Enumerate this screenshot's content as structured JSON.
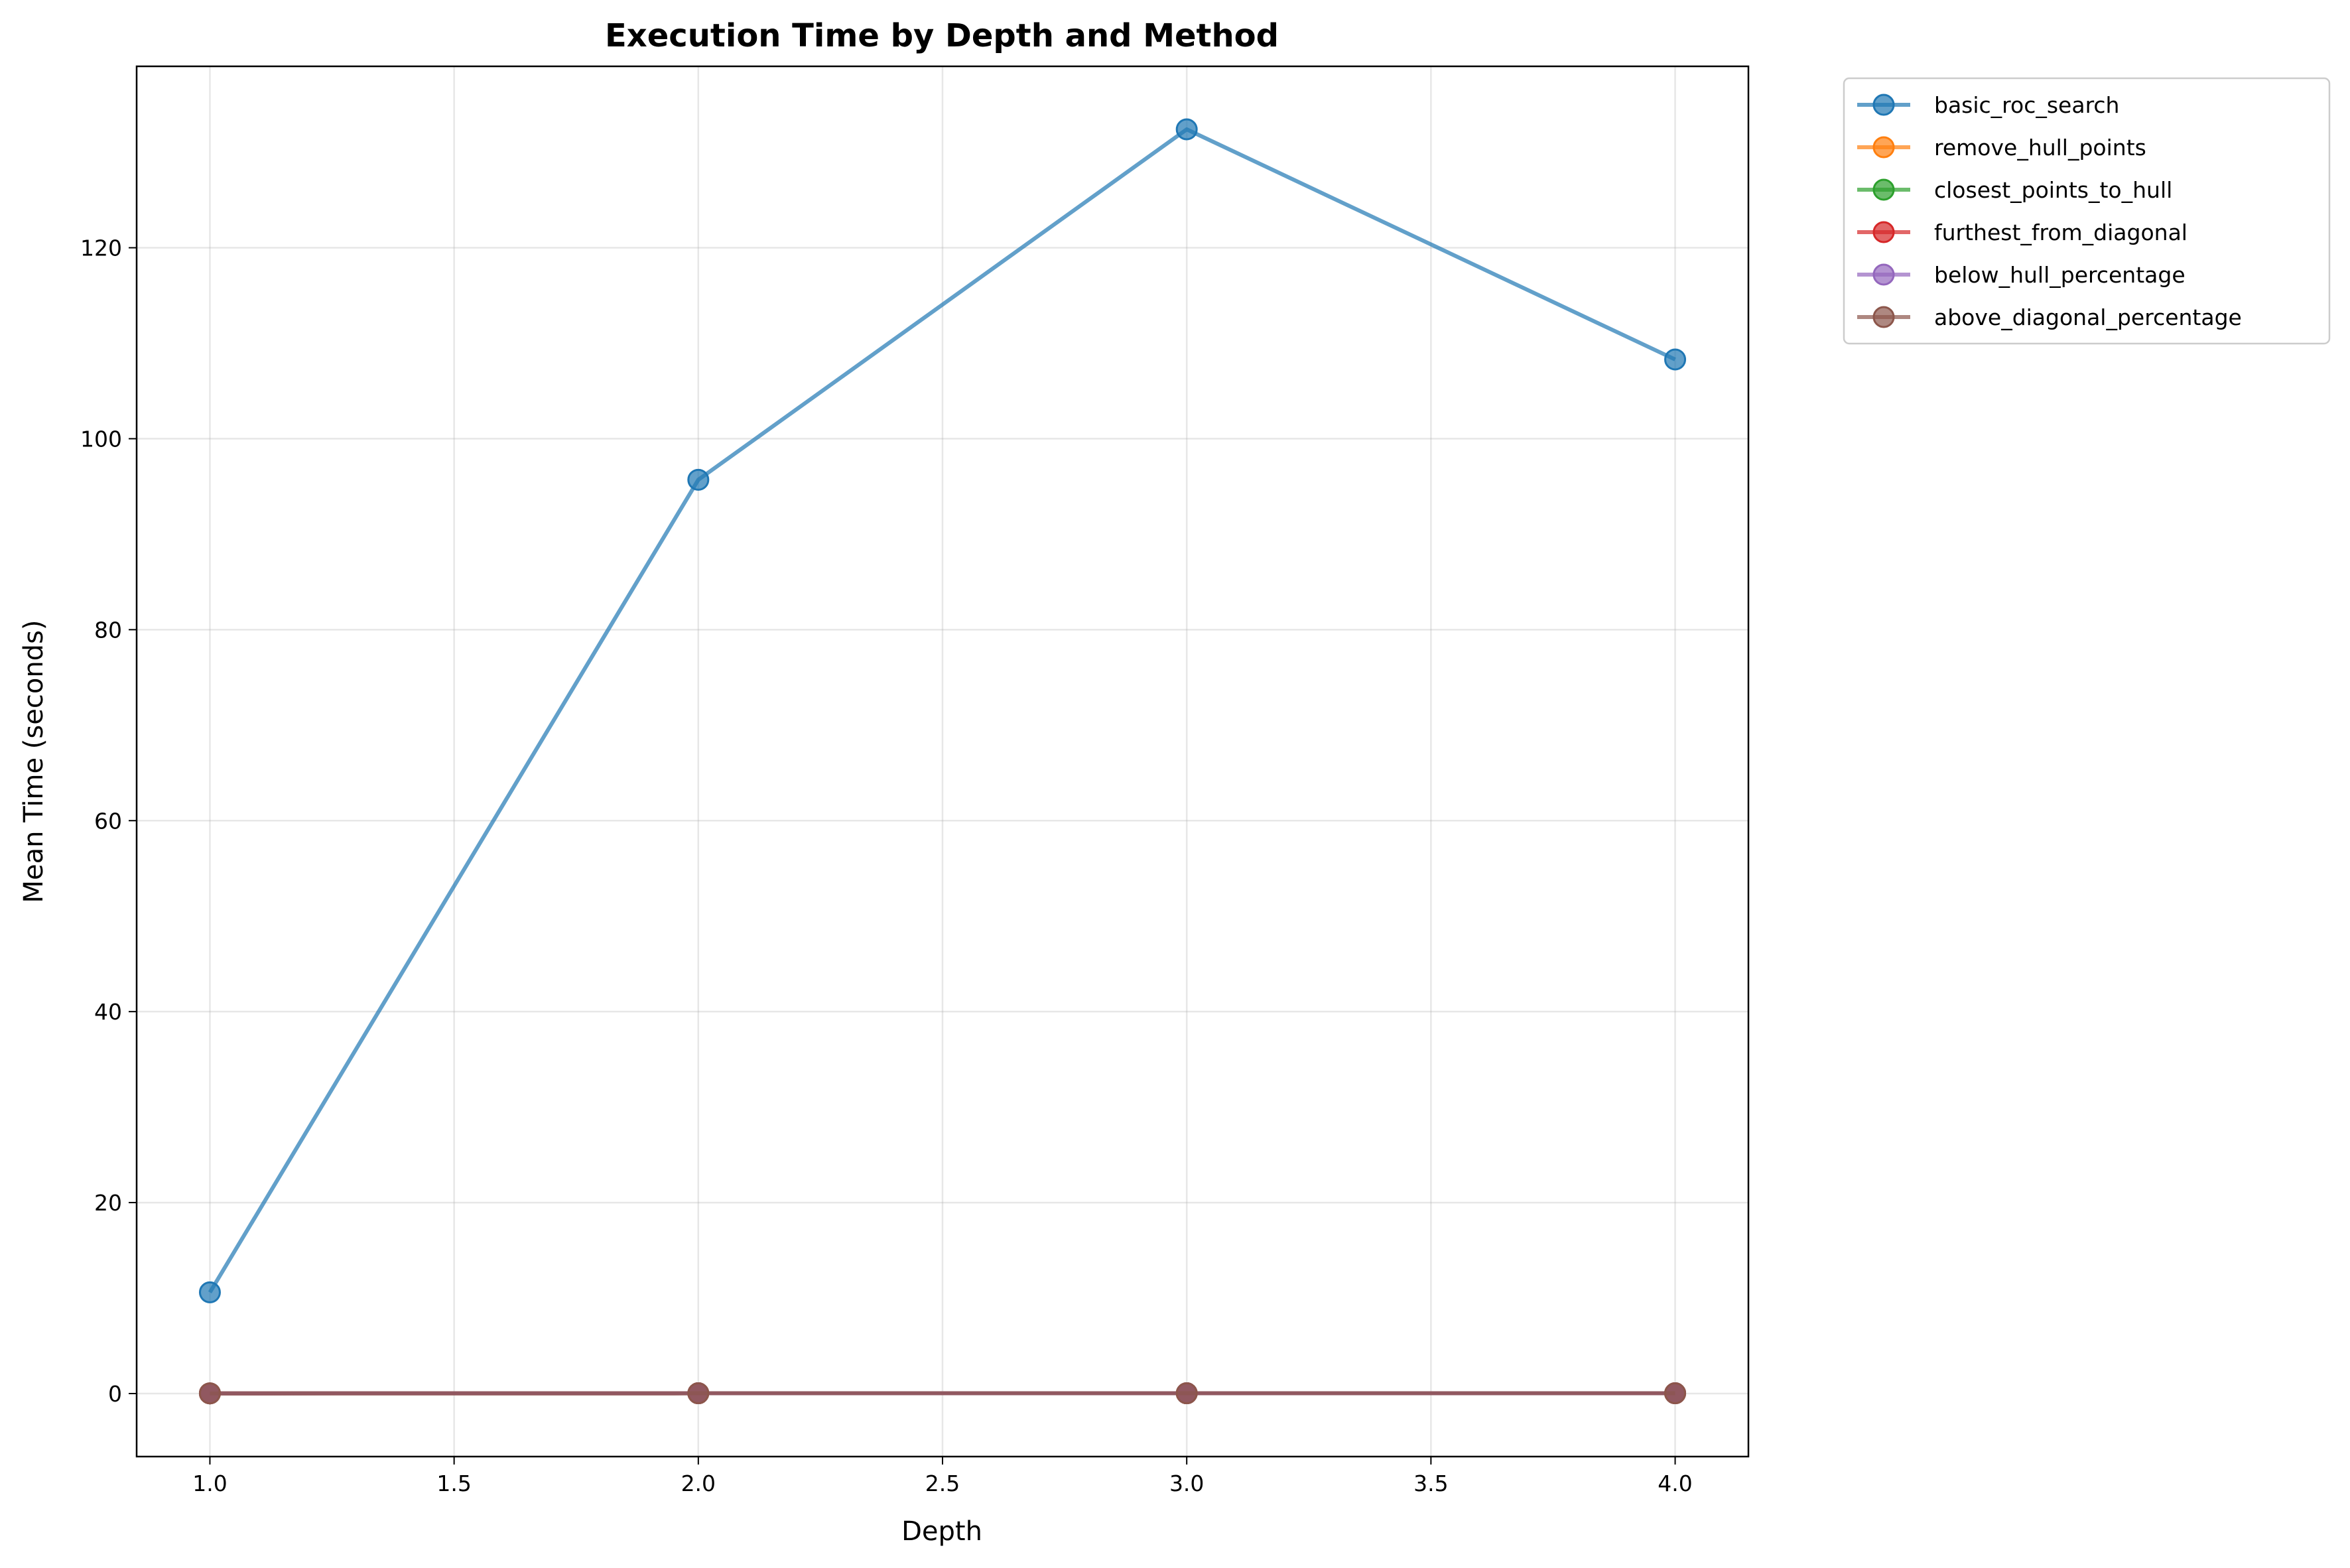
{
  "chart_data": {
    "type": "line",
    "title": "Execution Time by Depth and Method",
    "xlabel": "Depth",
    "ylabel": "Mean Time (seconds)",
    "x": [
      1.0,
      2.0,
      3.0,
      4.0
    ],
    "xlim": [
      0.85,
      4.15
    ],
    "ylim": [
      -6.6,
      139
    ],
    "xticks": [
      "1.0",
      "1.5",
      "2.0",
      "2.5",
      "3.0",
      "3.5",
      "4.0"
    ],
    "xtick_values": [
      1.0,
      1.5,
      2.0,
      2.5,
      3.0,
      3.5,
      4.0
    ],
    "yticks": [
      "0",
      "20",
      "40",
      "60",
      "80",
      "100",
      "120"
    ],
    "ytick_values": [
      0,
      20,
      40,
      60,
      80,
      100,
      120
    ],
    "grid": true,
    "legend_position": "outside upper right",
    "series": [
      {
        "name": "basic_roc_search",
        "color": "#1f77b4",
        "values": [
          10.6,
          95.7,
          132.4,
          108.3
        ]
      },
      {
        "name": "remove_hull_points",
        "color": "#ff7f0e",
        "values": [
          0.02,
          0.03,
          0.03,
          0.03
        ]
      },
      {
        "name": "closest_points_to_hull",
        "color": "#2ca02c",
        "values": [
          0.02,
          0.03,
          0.03,
          0.03
        ]
      },
      {
        "name": "furthest_from_diagonal",
        "color": "#d62728",
        "values": [
          0.02,
          0.03,
          0.03,
          0.03
        ]
      },
      {
        "name": "below_hull_percentage",
        "color": "#9467bd",
        "values": [
          0.02,
          0.03,
          0.03,
          0.03
        ]
      },
      {
        "name": "above_diagonal_percentage",
        "color": "#8c564b",
        "values": [
          0.02,
          0.03,
          0.03,
          0.03
        ]
      }
    ]
  }
}
